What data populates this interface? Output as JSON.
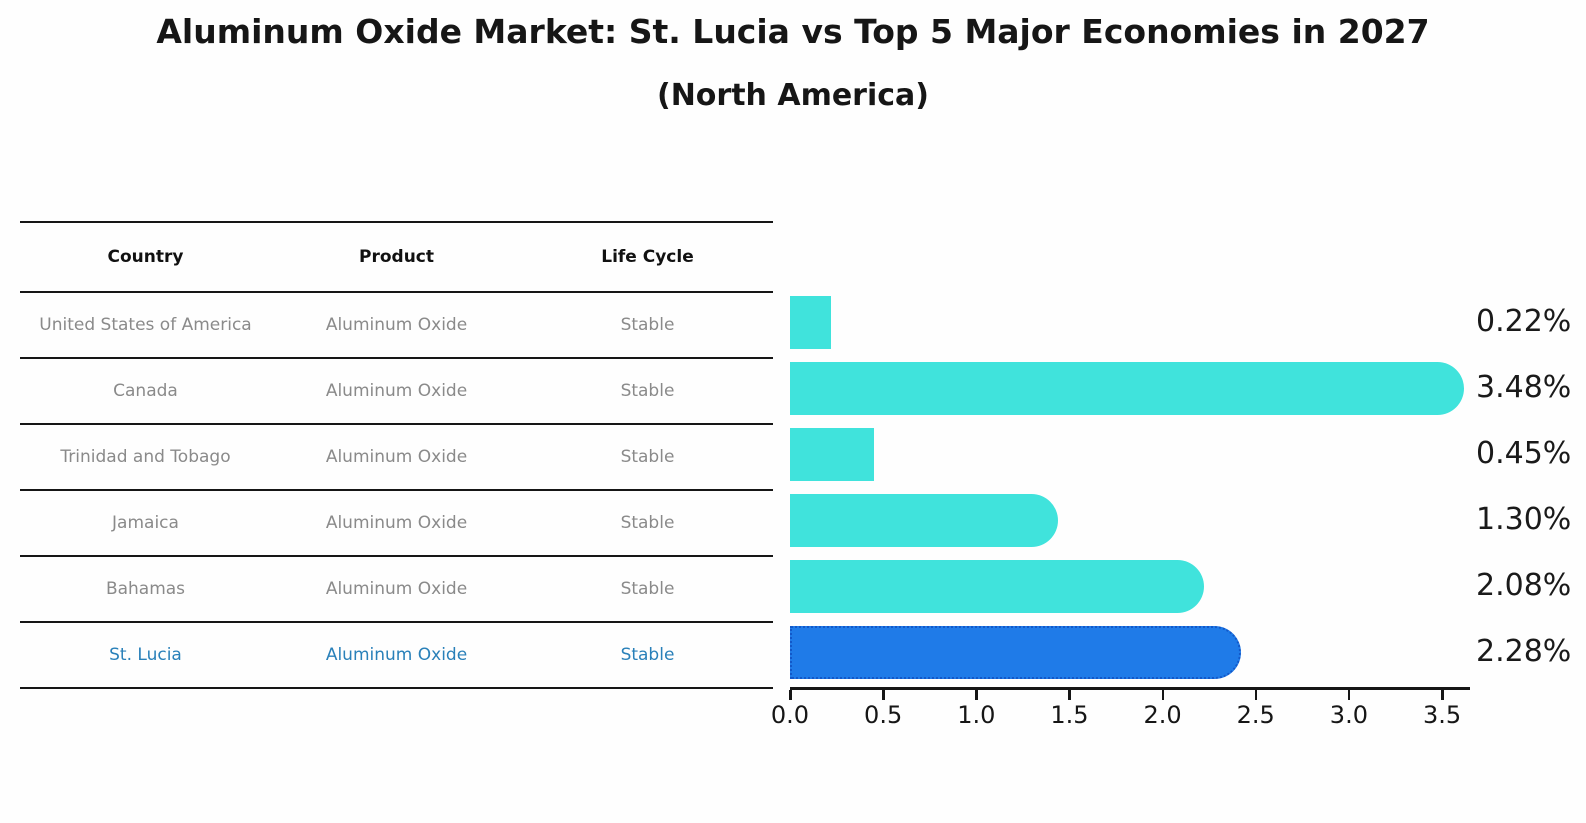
{
  "title": "Aluminum Oxide Market: St. Lucia vs Top 5 Major Economies in 2027",
  "subtitle": "(North America)",
  "table": {
    "headers": [
      "Country",
      "Product",
      "Life Cycle"
    ],
    "rows": [
      {
        "country": "United States of America",
        "product": "Aluminum Oxide",
        "life_cycle": "Stable",
        "highlight": false
      },
      {
        "country": "Canada",
        "product": "Aluminum Oxide",
        "life_cycle": "Stable",
        "highlight": false
      },
      {
        "country": "Trinidad and Tobago",
        "product": "Aluminum Oxide",
        "life_cycle": "Stable",
        "highlight": false
      },
      {
        "country": "Jamaica",
        "product": "Aluminum Oxide",
        "life_cycle": "Stable",
        "highlight": false
      },
      {
        "country": "Bahamas",
        "product": "Aluminum Oxide",
        "life_cycle": "Stable",
        "highlight": true
      }
    ]
  },
  "chart_data": {
    "type": "bar",
    "orientation": "horizontal",
    "title": "Aluminum Oxide Market: St. Lucia vs Top 5 Major Economies in 2027 (North America)",
    "categories": [
      "United States of America",
      "Canada",
      "Trinidad and Tobago",
      "Jamaica",
      "Bahamas",
      "St. Lucia"
    ],
    "values": [
      0.22,
      3.48,
      0.45,
      1.3,
      2.08,
      2.28
    ],
    "value_labels": [
      "0.22%",
      "3.48%",
      "0.45%",
      "1.30%",
      "2.08%",
      "2.28%"
    ],
    "x_ticks": [
      "0.0",
      "0.5",
      "1.0",
      "1.5",
      "2.0",
      "2.5",
      "3.0",
      "3.5"
    ],
    "xlim": [
      0,
      3.64
    ],
    "grid": false,
    "legend": false,
    "bar_color": "#40E3DC",
    "highlight_index": 5,
    "highlight_bar_color": "#1F7BE8",
    "highlight_border_color": "#1258C9",
    "highlight_text_color": "#2980B9",
    "row_text_color": "#8A8A8A"
  }
}
